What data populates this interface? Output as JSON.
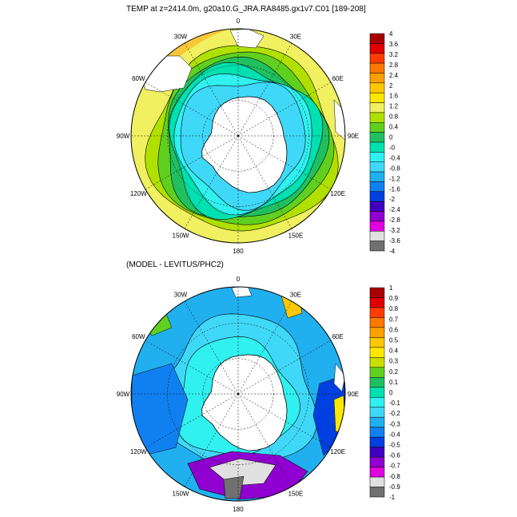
{
  "panels": [
    {
      "title": "TEMP at z=2414.0m, g20a10.G_JRA.RA8485.gx1v7.C01 [189-208]",
      "longitude_labels": [
        "0",
        "30E",
        "60E",
        "90E",
        "120E",
        "150E",
        "180",
        "150W",
        "120W",
        "90W",
        "60W",
        "30W"
      ],
      "colorbar": {
        "labels": [
          "4",
          "3.6",
          "3.2",
          "2.8",
          "2.4",
          "2",
          "1.6",
          "1.2",
          "0.8",
          "0.4",
          "0",
          "-0",
          "-0.4",
          "-0.8",
          "-1.2",
          "-1.6",
          "-2",
          "-2.4",
          "-2.8",
          "-3.2",
          "-3.6",
          "-4"
        ],
        "colors": [
          "#a80000",
          "#e00000",
          "#ff3c00",
          "#ff7800",
          "#ffa000",
          "#ffc800",
          "#ffe800",
          "#f0f060",
          "#b0e000",
          "#60d020",
          "#20c060",
          "#00e0b0",
          "#30f0f0",
          "#40d8f8",
          "#20b0f0",
          "#1080f0",
          "#0040e0",
          "#4000c0",
          "#9000d0",
          "#e000e0",
          "#e0e0e0",
          "#707070"
        ]
      }
    },
    {
      "title": "(MODEL - LEVITUS/PHC2)",
      "longitude_labels": [
        "0",
        "30E",
        "60E",
        "90E",
        "120E",
        "150E",
        "180",
        "150W",
        "120W",
        "90W",
        "60W",
        "30W"
      ],
      "colorbar": {
        "labels": [
          "1",
          "0.9",
          "0.8",
          "0.7",
          "0.6",
          "0.5",
          "0.4",
          "0.3",
          "0.2",
          "0.1",
          "0",
          "-0.1",
          "-0.2",
          "-0.3",
          "-0.4",
          "-0.5",
          "-0.6",
          "-0.7",
          "-0.8",
          "-0.9",
          "-1"
        ],
        "colors": [
          "#a80000",
          "#e00000",
          "#ff3c00",
          "#ff7800",
          "#ffa000",
          "#ffc800",
          "#ffe800",
          "#c8e000",
          "#60d020",
          "#20c060",
          "#00e0b0",
          "#30f0f0",
          "#40d8f8",
          "#20b0f0",
          "#1080f0",
          "#0040e0",
          "#4000c0",
          "#9000d0",
          "#e000e0",
          "#e0e0e0",
          "#707070"
        ]
      }
    }
  ]
}
